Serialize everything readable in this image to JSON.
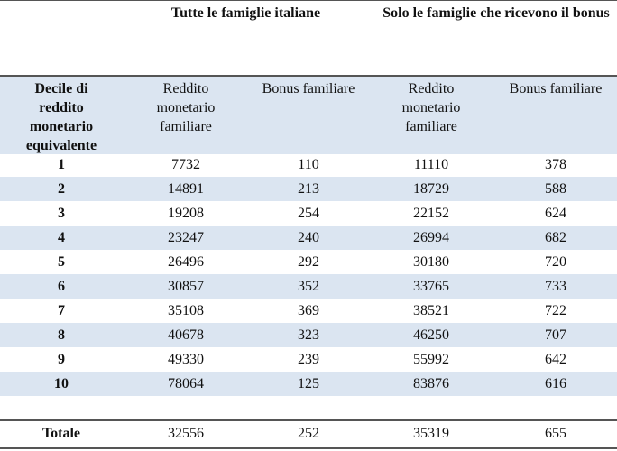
{
  "table": {
    "group_headers": [
      "Tutte le famiglie italiane",
      "Solo le famiglie che ricevono il bonus"
    ],
    "columns": {
      "decile": "Decile di reddito monetario equivalente",
      "reddito_1": "Reddito monetario familiare",
      "bonus_1": "Bonus familiare",
      "reddito_2": "Reddito monetario familiare",
      "bonus_2": "Bonus familiare"
    },
    "rows": [
      {
        "decile": "1",
        "reddito_1": "7732",
        "bonus_1": "110",
        "reddito_2": "11110",
        "bonus_2": "378"
      },
      {
        "decile": "2",
        "reddito_1": "14891",
        "bonus_1": "213",
        "reddito_2": "18729",
        "bonus_2": "588"
      },
      {
        "decile": "3",
        "reddito_1": "19208",
        "bonus_1": "254",
        "reddito_2": "22152",
        "bonus_2": "624"
      },
      {
        "decile": "4",
        "reddito_1": "23247",
        "bonus_1": "240",
        "reddito_2": "26994",
        "bonus_2": "682"
      },
      {
        "decile": "5",
        "reddito_1": "26496",
        "bonus_1": "292",
        "reddito_2": "30180",
        "bonus_2": "720"
      },
      {
        "decile": "6",
        "reddito_1": "30857",
        "bonus_1": "352",
        "reddito_2": "33765",
        "bonus_2": "733"
      },
      {
        "decile": "7",
        "reddito_1": "35108",
        "bonus_1": "369",
        "reddito_2": "38521",
        "bonus_2": "722"
      },
      {
        "decile": "8",
        "reddito_1": "40678",
        "bonus_1": "323",
        "reddito_2": "46250",
        "bonus_2": "707"
      },
      {
        "decile": "9",
        "reddito_1": "49330",
        "bonus_1": "239",
        "reddito_2": "55992",
        "bonus_2": "642"
      },
      {
        "decile": "10",
        "reddito_1": "78064",
        "bonus_1": "125",
        "reddito_2": "83876",
        "bonus_2": "616"
      }
    ],
    "total": {
      "label": "Totale",
      "reddito_1": "32556",
      "bonus_1": "252",
      "reddito_2": "35319",
      "bonus_2": "655"
    },
    "colors": {
      "band": "#dbe5f1",
      "rule": "#555555"
    }
  }
}
